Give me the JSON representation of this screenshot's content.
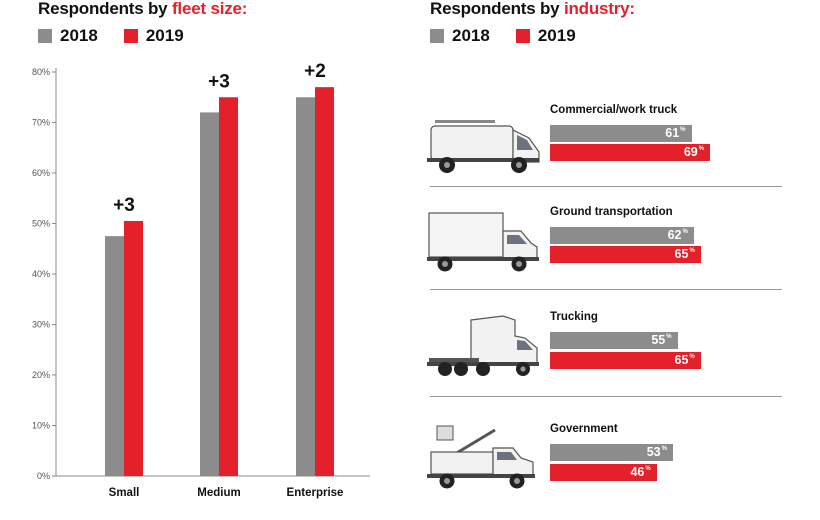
{
  "colors": {
    "y2018": "#8c8c8c",
    "y2019": "#e4202a",
    "text": "#111111"
  },
  "fleet": {
    "title_main": "Respondents by ",
    "title_accent": "fleet size:",
    "legend": [
      "2018",
      "2019"
    ]
  },
  "industry": {
    "title_main": "Respondents by ",
    "title_accent": "industry:",
    "legend": [
      "2018",
      "2019"
    ],
    "rows": [
      {
        "label": "Commercial/work truck",
        "icon": "van-icon",
        "v2018": 61,
        "v2019": 69,
        "t2018": "61",
        "t2019": "69",
        "unit": "%"
      },
      {
        "label": "Ground transportation",
        "icon": "box-truck-icon",
        "v2018": 62,
        "v2019": 65,
        "t2018": "62",
        "t2019": "65",
        "unit": "%"
      },
      {
        "label": "Trucking",
        "icon": "semi-truck-icon",
        "v2018": 55,
        "v2019": 65,
        "t2018": "55",
        "t2019": "65",
        "unit": "%"
      },
      {
        "label": "Government",
        "icon": "utility-bucket-truck-icon",
        "v2018": 53,
        "v2019": 46,
        "t2018": "53",
        "t2019": "46",
        "unit": "%"
      }
    ]
  },
  "chart_data": [
    {
      "type": "bar",
      "title": "Respondents by fleet size:",
      "categories": [
        "Small",
        "Medium",
        "Enterprise"
      ],
      "series": [
        {
          "name": "2018",
          "values": [
            47.5,
            72,
            75
          ]
        },
        {
          "name": "2019",
          "values": [
            50.5,
            75,
            77
          ]
        }
      ],
      "annotations": [
        "+3",
        "+3",
        "+2"
      ],
      "yticks": [
        "0%",
        "10%",
        "20%",
        "30%",
        "40%",
        "50%",
        "60%",
        "70%",
        "80%"
      ],
      "ylim": [
        0,
        80
      ],
      "grid": false,
      "legend": "top-left"
    },
    {
      "type": "bar",
      "orientation": "horizontal",
      "title": "Respondents by industry:",
      "categories": [
        "Commercial/work truck",
        "Ground transportation",
        "Trucking",
        "Government"
      ],
      "series": [
        {
          "name": "2018",
          "values": [
            61,
            62,
            55,
            53
          ]
        },
        {
          "name": "2019",
          "values": [
            69,
            65,
            65,
            46
          ]
        }
      ],
      "legend": "top-left"
    }
  ]
}
